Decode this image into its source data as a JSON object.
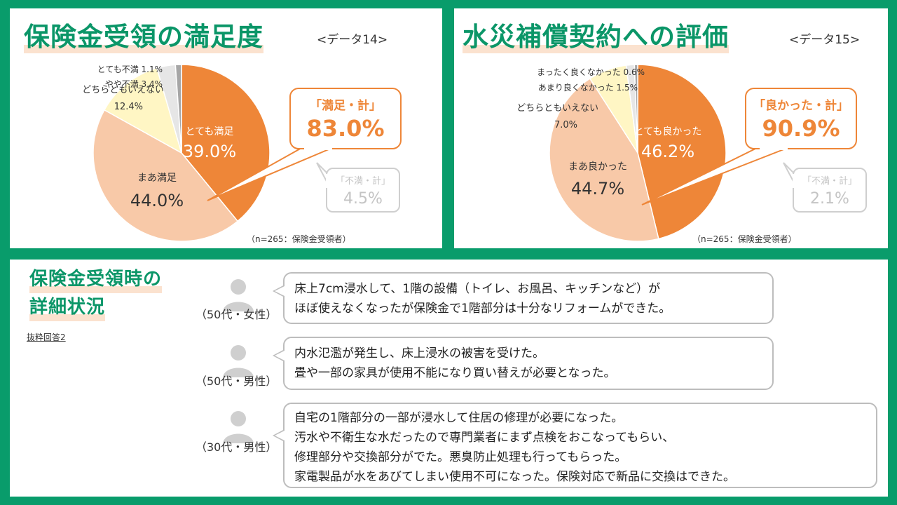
{
  "chart_data": [
    {
      "type": "pie",
      "title": "保険金受領の満足度",
      "data_tag": "<データ14>",
      "note": "（n=265：保険金受領者）",
      "slices": [
        {
          "label": "とても満足",
          "value": 39.0,
          "display": "39.0%",
          "color": "#ee8638"
        },
        {
          "label": "まあ満足",
          "value": 44.0,
          "display": "44.0%",
          "color": "#f8c9a8"
        },
        {
          "label": "どちらともいえない",
          "value": 12.4,
          "display": "12.4%",
          "color": "#fff6c4"
        },
        {
          "label": "やや不満",
          "value": 3.4,
          "display": "3.4%",
          "color": "#e6e6e6"
        },
        {
          "label": "とても不満",
          "value": 1.1,
          "display": "1.1%",
          "color": "#a6a6a6"
        }
      ],
      "callout_main": {
        "label": "「満足・計」",
        "value": "83.0%"
      },
      "callout_sub": {
        "label": "「不満・計」",
        "value": "4.5%"
      }
    },
    {
      "type": "pie",
      "title": "水災補償契約への評価",
      "data_tag": "<データ15>",
      "note": "（n=265：保険金受領者）",
      "slices": [
        {
          "label": "とても良かった",
          "value": 46.2,
          "display": "46.2%",
          "color": "#ee8638"
        },
        {
          "label": "まあ良かった",
          "value": 44.7,
          "display": "44.7%",
          "color": "#f8c9a8"
        },
        {
          "label": "どちらともいえない",
          "value": 7.0,
          "display": "7.0%",
          "color": "#fff6c4"
        },
        {
          "label": "あまり良くなかった",
          "value": 1.5,
          "display": "1.5%",
          "color": "#e6e6e6"
        },
        {
          "label": "まったく良くなかった",
          "value": 0.6,
          "display": "0.6%",
          "color": "#a6a6a6"
        }
      ],
      "callout_main": {
        "label": "「良かった・計」",
        "value": "90.9%"
      },
      "callout_sub": {
        "label": "「不満・計」",
        "value": "2.1%"
      }
    }
  ],
  "details": {
    "title_line1": "保険金受領時の",
    "title_line2": "詳細状況",
    "excerpt_label": "抜粋回答2",
    "comments": [
      {
        "demographic": "（50代・女性）",
        "lines": [
          "床上7cm浸水して、1階の設備（トイレ、お風呂、キッチンなど）が",
          "ほぼ使えなくなったが保険金で1階部分は十分なリフォームができた。"
        ]
      },
      {
        "demographic": "（50代・男性）",
        "lines": [
          "内水氾濫が発生し、床上浸水の被害を受けた。",
          "畳や一部の家具が使用不能になり買い替えが必要となった。"
        ]
      },
      {
        "demographic": "（30代・男性）",
        "lines": [
          "自宅の1階部分の一部が浸水して住居の修理が必要になった。",
          "汚水や不衛生な水だったので専門業者にまず点検をおこなってもらい、",
          "修理部分や交換部分がでた。悪臭防止処理も行ってもらった。",
          "家電製品が水をあびてしまい使用不可になった。保険対応で新品に交換はできた。"
        ]
      }
    ]
  },
  "colors": {
    "frame": "#099c6b",
    "title": "#0b9668",
    "accent": "#ee8638",
    "muted": "#bdbdbd"
  },
  "icons": [
    "person-icon"
  ]
}
